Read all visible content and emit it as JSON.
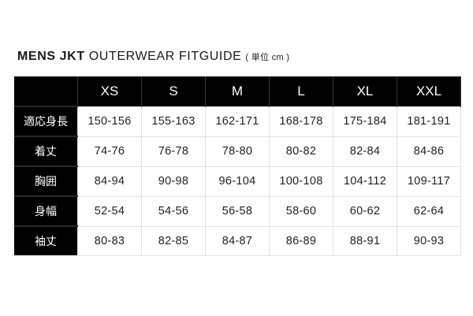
{
  "title": {
    "bold": "MENS JKT",
    "regular": "OUTERWEAR FITGUIDE",
    "unit": "( 単位 cm )"
  },
  "table": {
    "sizes": [
      "XS",
      "S",
      "M",
      "L",
      "XL",
      "XXL"
    ],
    "rows": [
      {
        "label": "適応身長",
        "values": [
          "150-156",
          "155-163",
          "162-171",
          "168-178",
          "175-184",
          "181-191"
        ]
      },
      {
        "label": "着丈",
        "values": [
          "74-76",
          "76-78",
          "78-80",
          "80-82",
          "82-84",
          "84-86"
        ]
      },
      {
        "label": "胸囲",
        "values": [
          "84-94",
          "90-98",
          "96-104",
          "100-108",
          "104-112",
          "109-117"
        ]
      },
      {
        "label": "身幅",
        "values": [
          "52-54",
          "54-56",
          "56-58",
          "58-60",
          "60-62",
          "62-64"
        ]
      },
      {
        "label": "袖丈",
        "values": [
          "80-83",
          "82-85",
          "84-87",
          "86-89",
          "88-91",
          "90-93"
        ]
      }
    ]
  }
}
